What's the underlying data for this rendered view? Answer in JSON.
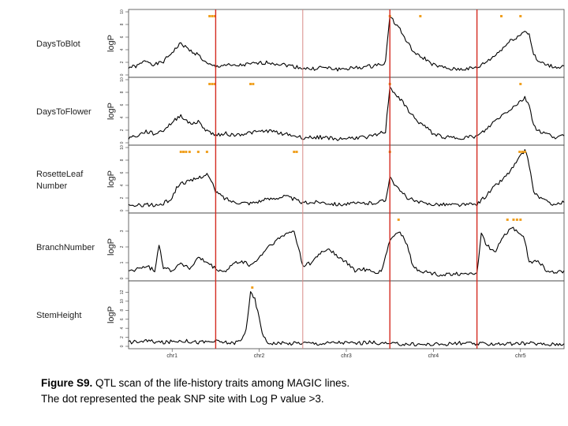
{
  "chart_data": {
    "type": "line",
    "title": "",
    "x_axis": {
      "label": "",
      "chromosomes": [
        "chr1",
        "chr2",
        "chr3",
        "chr4",
        "chr5"
      ]
    },
    "panels": [
      {
        "name": "DaysToBlot",
        "label_lines": [
          "DaysToBlot"
        ],
        "ylabel": "logP",
        "ylim": [
          0,
          10
        ],
        "yticks": [
          0,
          2,
          4,
          6,
          8,
          10
        ],
        "profile": [
          [
            0,
            1.2
          ],
          [
            0.1,
            1.4
          ],
          [
            0.2,
            2.3
          ],
          [
            0.3,
            1.6
          ],
          [
            0.4,
            2.1
          ],
          [
            0.5,
            3.6
          ],
          [
            0.6,
            5.0
          ],
          [
            0.7,
            3.9
          ],
          [
            0.8,
            3.2
          ],
          [
            0.9,
            1.7
          ],
          [
            1.0,
            1.3
          ],
          [
            1.1,
            1.6
          ],
          [
            1.2,
            1.4
          ],
          [
            1.4,
            1.7
          ],
          [
            1.6,
            2.0
          ],
          [
            1.8,
            1.6
          ],
          [
            2.0,
            1.1
          ],
          [
            2.1,
            0.9
          ],
          [
            2.2,
            1.2
          ],
          [
            2.4,
            0.9
          ],
          [
            2.6,
            1.1
          ],
          [
            2.8,
            1.4
          ],
          [
            2.95,
            2.0
          ],
          [
            3.0,
            9.6
          ],
          [
            3.05,
            8.3
          ],
          [
            3.1,
            7.6
          ],
          [
            3.2,
            5.1
          ],
          [
            3.3,
            3.2
          ],
          [
            3.4,
            2.6
          ],
          [
            3.5,
            1.6
          ],
          [
            3.6,
            1.2
          ],
          [
            3.7,
            0.9
          ],
          [
            3.8,
            0.9
          ],
          [
            3.9,
            1.0
          ],
          [
            4.0,
            1.1
          ],
          [
            4.1,
            2.0
          ],
          [
            4.2,
            3.0
          ],
          [
            4.3,
            4.3
          ],
          [
            4.4,
            5.6
          ],
          [
            4.5,
            6.3
          ],
          [
            4.55,
            7.1
          ],
          [
            4.6,
            6.4
          ],
          [
            4.65,
            3.3
          ],
          [
            4.7,
            2.1
          ],
          [
            4.8,
            1.6
          ],
          [
            4.9,
            1.2
          ],
          [
            5.0,
            1.4
          ]
        ],
        "peaks": [
          0.93,
          0.96,
          0.99,
          3.0,
          3.35,
          4.28,
          4.5
        ]
      },
      {
        "name": "DaysToFlower",
        "label_lines": [
          "DaysToFlower"
        ],
        "ylabel": "logP",
        "ylim": [
          0,
          10
        ],
        "yticks": [
          0,
          2,
          4,
          6,
          8,
          10
        ],
        "profile": [
          [
            0,
            0.8
          ],
          [
            0.1,
            1.1
          ],
          [
            0.2,
            1.8
          ],
          [
            0.3,
            1.4
          ],
          [
            0.4,
            2.0
          ],
          [
            0.5,
            3.2
          ],
          [
            0.6,
            4.4
          ],
          [
            0.7,
            3.0
          ],
          [
            0.8,
            3.3
          ],
          [
            0.9,
            1.9
          ],
          [
            1.0,
            1.2
          ],
          [
            1.1,
            1.5
          ],
          [
            1.2,
            1.2
          ],
          [
            1.4,
            1.6
          ],
          [
            1.6,
            1.9
          ],
          [
            1.8,
            1.4
          ],
          [
            2.0,
            0.8
          ],
          [
            2.2,
            0.9
          ],
          [
            2.4,
            0.6
          ],
          [
            2.6,
            0.8
          ],
          [
            2.8,
            1.0
          ],
          [
            2.95,
            1.8
          ],
          [
            3.0,
            9.0
          ],
          [
            3.05,
            7.9
          ],
          [
            3.1,
            7.2
          ],
          [
            3.2,
            5.4
          ],
          [
            3.3,
            3.6
          ],
          [
            3.4,
            2.6
          ],
          [
            3.5,
            1.4
          ],
          [
            3.6,
            1.0
          ],
          [
            3.7,
            0.8
          ],
          [
            3.8,
            0.8
          ],
          [
            3.9,
            0.9
          ],
          [
            4.0,
            1.0
          ],
          [
            4.1,
            2.0
          ],
          [
            4.2,
            3.4
          ],
          [
            4.3,
            4.5
          ],
          [
            4.4,
            5.5
          ],
          [
            4.5,
            6.6
          ],
          [
            4.55,
            7.1
          ],
          [
            4.6,
            6.0
          ],
          [
            4.65,
            2.9
          ],
          [
            4.7,
            1.9
          ],
          [
            4.8,
            1.4
          ],
          [
            4.9,
            0.9
          ],
          [
            5.0,
            1.1
          ]
        ],
        "peaks": [
          0.93,
          0.96,
          0.99,
          1.4,
          1.43,
          3.0,
          4.5
        ]
      },
      {
        "name": "RosetteLeafNumber",
        "label_lines": [
          "RosetteLeaf",
          "Number"
        ],
        "ylabel": "logP",
        "ylim": [
          0,
          10
        ],
        "yticks": [
          0,
          2,
          4,
          6,
          8,
          10
        ],
        "profile": [
          [
            0,
            0.7
          ],
          [
            0.1,
            0.8
          ],
          [
            0.2,
            1.0
          ],
          [
            0.3,
            0.8
          ],
          [
            0.4,
            1.1
          ],
          [
            0.5,
            2.0
          ],
          [
            0.55,
            3.6
          ],
          [
            0.6,
            4.4
          ],
          [
            0.7,
            4.6
          ],
          [
            0.8,
            5.2
          ],
          [
            0.9,
            5.8
          ],
          [
            0.95,
            4.6
          ],
          [
            1.0,
            3.0
          ],
          [
            1.1,
            2.0
          ],
          [
            1.2,
            1.4
          ],
          [
            1.4,
            1.2
          ],
          [
            1.6,
            1.8
          ],
          [
            1.8,
            2.3
          ],
          [
            1.9,
            1.8
          ],
          [
            2.0,
            1.2
          ],
          [
            2.2,
            1.4
          ],
          [
            2.4,
            1.0
          ],
          [
            2.6,
            1.1
          ],
          [
            2.8,
            1.2
          ],
          [
            2.95,
            1.6
          ],
          [
            3.0,
            5.5
          ],
          [
            3.05,
            4.3
          ],
          [
            3.1,
            3.3
          ],
          [
            3.2,
            2.1
          ],
          [
            3.3,
            1.4
          ],
          [
            3.4,
            1.1
          ],
          [
            3.6,
            1.0
          ],
          [
            3.8,
            0.9
          ],
          [
            4.0,
            1.0
          ],
          [
            4.1,
            2.3
          ],
          [
            4.2,
            3.8
          ],
          [
            4.3,
            5.0
          ],
          [
            4.4,
            6.6
          ],
          [
            4.5,
            8.6
          ],
          [
            4.55,
            9.6
          ],
          [
            4.6,
            7.3
          ],
          [
            4.65,
            3.0
          ],
          [
            4.7,
            2.3
          ],
          [
            4.8,
            1.4
          ],
          [
            4.9,
            1.0
          ],
          [
            5.0,
            1.3
          ]
        ],
        "peaks": [
          0.6,
          0.63,
          0.66,
          0.7,
          0.8,
          0.9,
          1.9,
          1.93,
          3.0,
          4.49,
          4.52,
          4.55
        ]
      },
      {
        "name": "BranchNumber",
        "label_lines": [
          "BranchNumber"
        ],
        "ylabel": "logP",
        "ylim": [
          0,
          4
        ],
        "yticks": [
          0,
          1,
          2,
          3
        ],
        "profile": [
          [
            0,
            0.4
          ],
          [
            0.1,
            0.6
          ],
          [
            0.2,
            0.8
          ],
          [
            0.3,
            0.5
          ],
          [
            0.35,
            2.2
          ],
          [
            0.4,
            0.7
          ],
          [
            0.5,
            0.5
          ],
          [
            0.6,
            1.0
          ],
          [
            0.7,
            0.6
          ],
          [
            0.8,
            1.3
          ],
          [
            0.9,
            1.0
          ],
          [
            1.0,
            0.6
          ],
          [
            1.1,
            0.4
          ],
          [
            1.2,
            0.9
          ],
          [
            1.3,
            1.1
          ],
          [
            1.4,
            0.8
          ],
          [
            1.5,
            1.3
          ],
          [
            1.6,
            2.0
          ],
          [
            1.7,
            2.4
          ],
          [
            1.8,
            2.8
          ],
          [
            1.9,
            3.0
          ],
          [
            1.95,
            2.0
          ],
          [
            2.0,
            0.8
          ],
          [
            2.1,
            1.0
          ],
          [
            2.2,
            1.6
          ],
          [
            2.3,
            1.9
          ],
          [
            2.4,
            1.4
          ],
          [
            2.5,
            1.0
          ],
          [
            2.6,
            0.5
          ],
          [
            2.7,
            0.6
          ],
          [
            2.8,
            0.4
          ],
          [
            2.9,
            0.4
          ],
          [
            3.0,
            2.4
          ],
          [
            3.1,
            3.0
          ],
          [
            3.2,
            2.2
          ],
          [
            3.25,
            1.0
          ],
          [
            3.3,
            0.6
          ],
          [
            3.4,
            0.4
          ],
          [
            3.5,
            0.3
          ],
          [
            3.6,
            0.2
          ],
          [
            3.7,
            0.3
          ],
          [
            3.8,
            0.3
          ],
          [
            3.9,
            0.2
          ],
          [
            4.0,
            0.4
          ],
          [
            4.05,
            2.8
          ],
          [
            4.1,
            2.2
          ],
          [
            4.2,
            1.6
          ],
          [
            4.3,
            2.6
          ],
          [
            4.4,
            3.2
          ],
          [
            4.5,
            2.9
          ],
          [
            4.55,
            2.4
          ],
          [
            4.6,
            1.0
          ],
          [
            4.7,
            1.1
          ],
          [
            4.8,
            0.5
          ],
          [
            4.9,
            0.3
          ],
          [
            5.0,
            0.5
          ]
        ],
        "peaks": [
          3.1,
          4.35,
          4.42,
          4.46,
          4.5
        ]
      },
      {
        "name": "StemHeight",
        "label_lines": [
          "StemHeight"
        ],
        "ylabel": "logP",
        "ylim": [
          0,
          14
        ],
        "yticks": [
          0,
          2,
          4,
          6,
          8,
          10,
          12
        ],
        "profile": [
          [
            0,
            0.9
          ],
          [
            0.2,
            1.2
          ],
          [
            0.4,
            0.8
          ],
          [
            0.6,
            1.3
          ],
          [
            0.8,
            0.9
          ],
          [
            1.0,
            1.1
          ],
          [
            1.2,
            0.7
          ],
          [
            1.3,
            1.4
          ],
          [
            1.35,
            4.0
          ],
          [
            1.4,
            11.8
          ],
          [
            1.45,
            10.4
          ],
          [
            1.5,
            6.2
          ],
          [
            1.55,
            2.0
          ],
          [
            1.6,
            0.8
          ],
          [
            1.8,
            0.6
          ],
          [
            2.0,
            0.8
          ],
          [
            2.2,
            0.6
          ],
          [
            2.4,
            0.9
          ],
          [
            2.6,
            0.7
          ],
          [
            2.8,
            0.9
          ],
          [
            3.0,
            0.5
          ],
          [
            3.2,
            0.5
          ],
          [
            3.4,
            0.4
          ],
          [
            3.6,
            0.5
          ],
          [
            3.8,
            0.7
          ],
          [
            4.0,
            0.5
          ],
          [
            4.2,
            0.6
          ],
          [
            4.4,
            0.5
          ],
          [
            4.6,
            0.7
          ],
          [
            4.8,
            0.4
          ],
          [
            5.0,
            0.6
          ]
        ],
        "peaks": [
          1.42
        ]
      }
    ],
    "chromosome_boundaries": [
      1,
      2,
      3,
      4
    ],
    "highlighted_boundaries": [
      1,
      3,
      4
    ],
    "colors": {
      "curve": "#000000",
      "peak_dot": "#f0a020",
      "highlight_line": "#d42a20",
      "boundary_line": "#d88a86"
    }
  },
  "caption": {
    "label": "Figure S9.",
    "line1": " QTL scan of the life-history traits among MAGIC lines.",
    "line2": "The dot represented the peak SNP site with Log P value >3."
  }
}
